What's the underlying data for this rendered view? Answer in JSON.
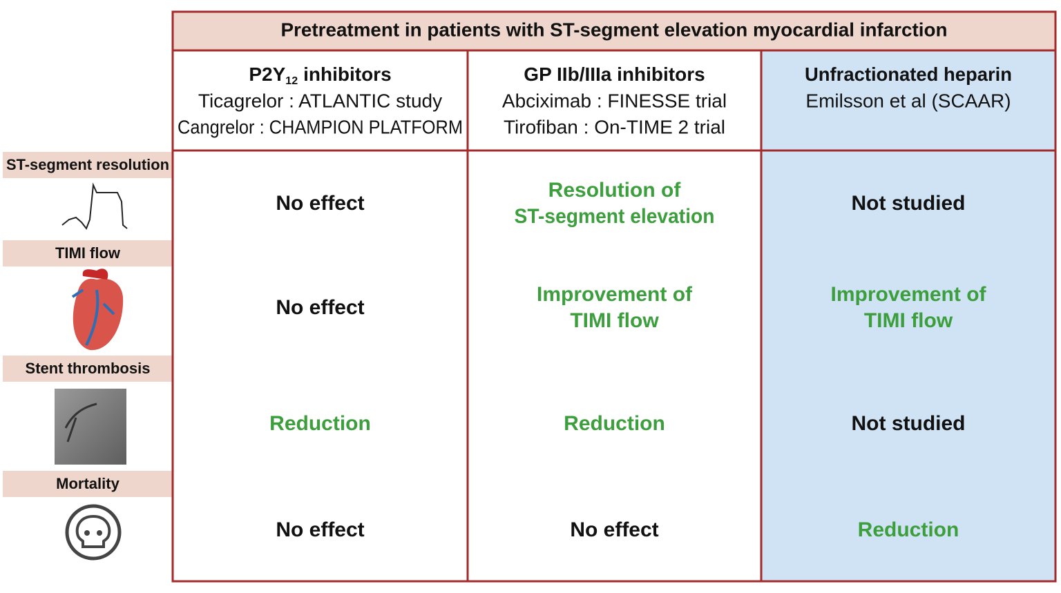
{
  "title": "Pretreatment in patients with ST-segment elevation myocardial infarction",
  "columns": [
    {
      "name": "P2Y",
      "name_subscript": "12",
      "name_suffix": "inhibitors",
      "lines": [
        "Ticagrelor : ATLANTIC study",
        "Cangrelor : CHAMPION PLATFORM"
      ],
      "background": "#ffffff"
    },
    {
      "name": "GP IIb/IIIa inhibitors",
      "lines": [
        "Abciximab : FINESSE trial",
        "Tirofiban : On-TIME 2 trial"
      ],
      "background": "#ffffff"
    },
    {
      "name": "Unfractionated heparin",
      "lines": [
        "Emilsson et al (SCAAR)"
      ],
      "background": "#cfe3f5"
    }
  ],
  "rows": [
    {
      "label": "ST-segment resolution",
      "cells": [
        {
          "lines": [
            "No effect"
          ],
          "color": "#111111"
        },
        {
          "lines": [
            "Resolution of",
            "ST-segment elevation"
          ],
          "color": "#3d9e3d"
        },
        {
          "lines": [
            "Not studied"
          ],
          "color": "#111111"
        }
      ]
    },
    {
      "label": "TIMI flow",
      "cells": [
        {
          "lines": [
            "No effect"
          ],
          "color": "#111111"
        },
        {
          "lines": [
            "Improvement of",
            "TIMI flow"
          ],
          "color": "#3d9e3d"
        },
        {
          "lines": [
            "Improvement of",
            "TIMI flow"
          ],
          "color": "#3d9e3d"
        }
      ]
    },
    {
      "label": "Stent thrombosis",
      "cells": [
        {
          "lines": [
            "Reduction"
          ],
          "color": "#3d9e3d"
        },
        {
          "lines": [
            "Reduction"
          ],
          "color": "#3d9e3d"
        },
        {
          "lines": [
            "Not studied"
          ],
          "color": "#111111"
        }
      ]
    },
    {
      "label": "Mortality",
      "cells": [
        {
          "lines": [
            "No effect"
          ],
          "color": "#111111"
        },
        {
          "lines": [
            "No effect"
          ],
          "color": "#111111"
        },
        {
          "lines": [
            "Reduction"
          ],
          "color": "#3d9e3d"
        }
      ]
    }
  ]
}
